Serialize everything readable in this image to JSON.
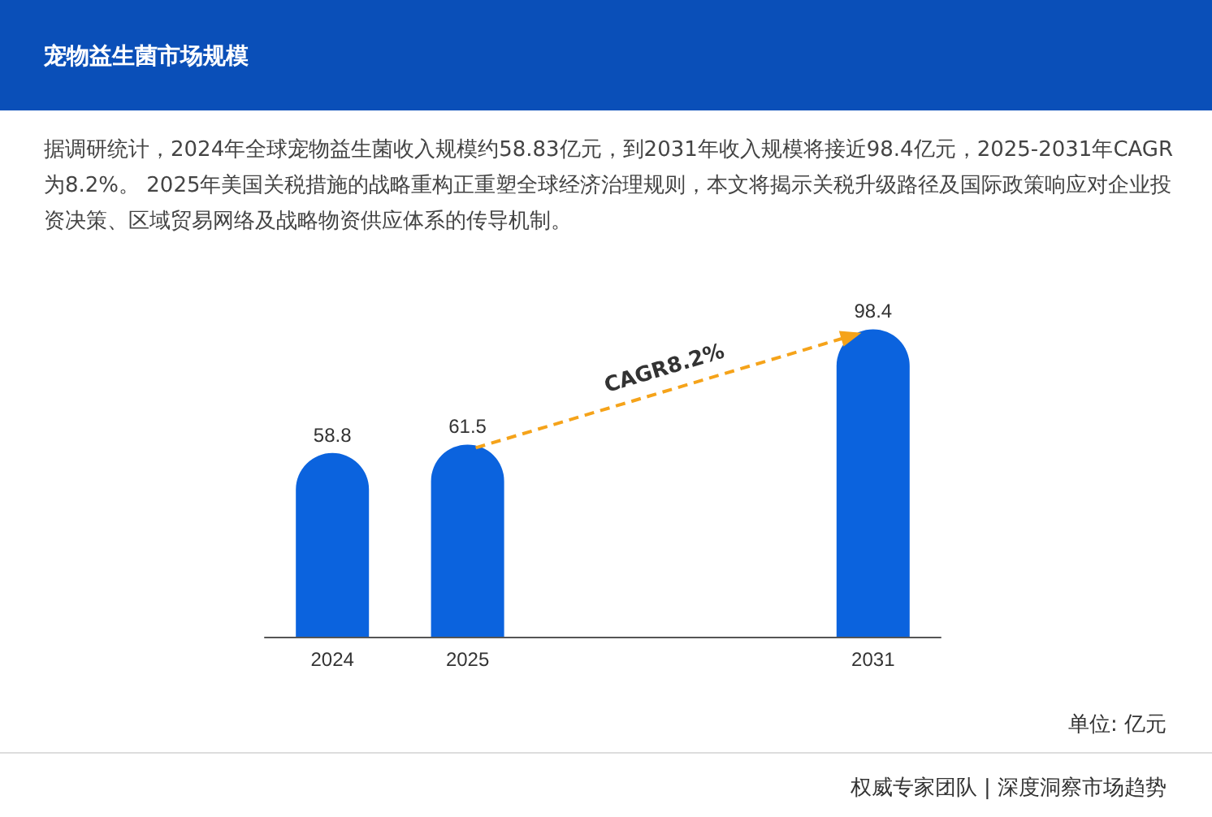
{
  "chart_data": {
    "type": "bar",
    "title": "宠物益生菌市场规模",
    "subtitle": "据调研统计，2024年全球宠物益生菌收入规模约58.83亿元，到2031年收入规模将接近98.4亿元，2025-2031年CAGR为8.2%。 2025年美国关税措施的战略重构正重塑全球经济治理规则，本文将揭示关税升级路径及国际政策响应对企业投资决策、区域贸易网络及战略物资供应体系的传导机制。",
    "categories": [
      "2024",
      "2025",
      null,
      null,
      "2031"
    ],
    "values": [
      58.8,
      61.5,
      null,
      null,
      98.4
    ],
    "color": "#0b63de",
    "data_labels": true,
    "annotations": [
      "CAGR8.2%",
      "单位: 亿元",
      "权威专家团队 | 深度洞察市场趋势"
    ]
  }
}
